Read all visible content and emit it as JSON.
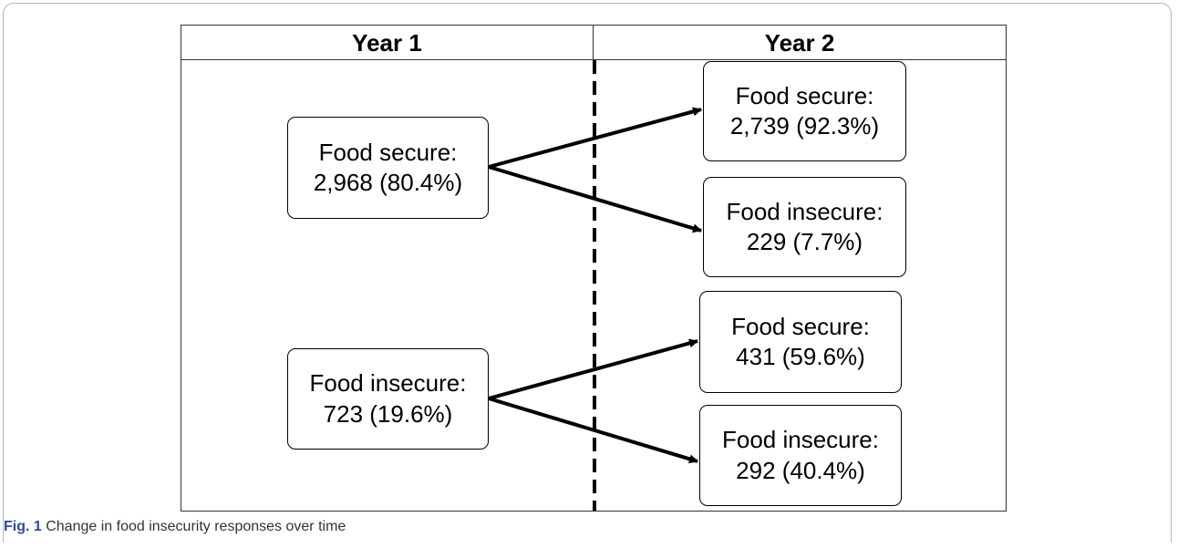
{
  "headers": {
    "left": "Year 1",
    "right": "Year 2"
  },
  "year1": {
    "secure": {
      "label": "Food secure:",
      "value": "2,968 (80.4%)"
    },
    "insecure": {
      "label": "Food insecure:",
      "value": "723 (19.6%)"
    }
  },
  "year2": {
    "from_secure": {
      "secure": {
        "label": "Food secure:",
        "value": "2,739 (92.3%)"
      },
      "insecure": {
        "label": "Food insecure:",
        "value": "229 (7.7%)"
      }
    },
    "from_insecure": {
      "secure": {
        "label": "Food secure:",
        "value": "431 (59.6%)"
      },
      "insecure": {
        "label": "Food insecure:",
        "value": "292 (40.4%)"
      }
    }
  },
  "caption": {
    "fig_label": "Fig. 1",
    "text": " Change in food insecurity responses over time"
  }
}
